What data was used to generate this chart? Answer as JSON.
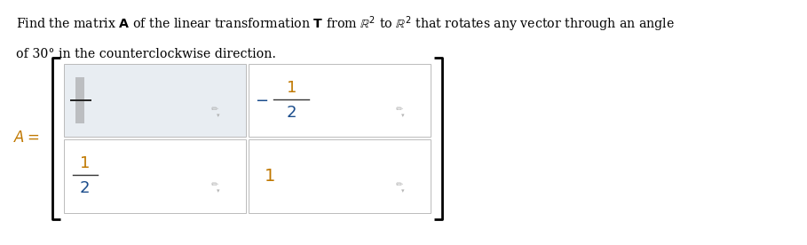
{
  "title_line1": "Find the matrix $\\mathbf{A}$ of the linear transformation $\\mathbf{T}$ from $\\mathbb{R}^2$ to $\\mathbb{R}^2$ that rotates any vector through an angle",
  "title_line2": "of 30° in the counterclockwise direction.",
  "matrix_label": "$A =$",
  "cells": [
    {
      "row": 0,
      "col": 0,
      "text": "",
      "shaded": true
    },
    {
      "row": 0,
      "col": 1,
      "text": "$-\\dfrac{1}{2}$",
      "shaded": false
    },
    {
      "row": 1,
      "col": 0,
      "text": "$\\dfrac{1}{2}$",
      "shaded": false
    },
    {
      "row": 1,
      "col": 1,
      "text": "$1$",
      "shaded": false
    }
  ],
  "bg_color": "#ffffff",
  "cell_bg_shaded": "#e8edf2",
  "cell_bg_normal": "#ffffff",
  "cell_border_color": "#bbbbbb",
  "bracket_color": "#000000",
  "text_color_numerator": "#c07800",
  "text_color_denominator": "#1a4c8b",
  "text_color_minus": "#1a4c8b",
  "text_color_1": "#c07800",
  "title_color": "#000000",
  "label_color": "#c07800",
  "cursor_bar_color": "#999999",
  "pencil_color": "#aaaaaa",
  "figw": 9.09,
  "figh": 2.76,
  "dpi": 100
}
